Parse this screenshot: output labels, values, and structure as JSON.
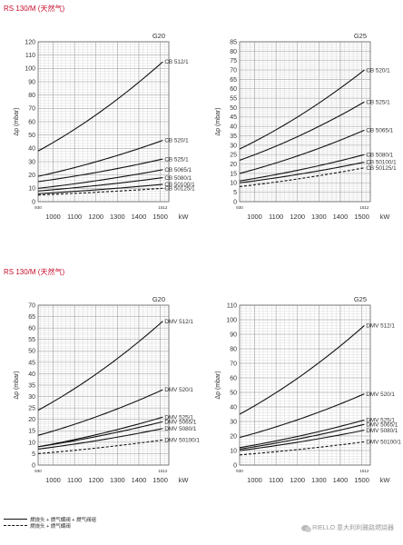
{
  "page": {
    "section1_title": "RS 130/M (天然气)",
    "section2_title": "RS 130/M (天然气)",
    "legend": {
      "solid_label": "燃烧头 + 燃气蝶阀 + 燃气阀组",
      "dashed_label": "燃烧头 + 燃气蝶阀"
    },
    "footer": "RIELLO 意大利利雅路燃烧器"
  },
  "chart_data": [
    {
      "type": "line",
      "gas": "G20",
      "ylabel": "Δp (mbar)",
      "xunit": "kW",
      "xlim": [
        930,
        1512
      ],
      "ylim": [
        0,
        120
      ],
      "yticks": [
        0,
        10,
        20,
        30,
        40,
        50,
        60,
        70,
        80,
        90,
        100,
        110,
        120
      ],
      "xticks": [
        1000,
        1100,
        1200,
        1300,
        1400,
        1500
      ],
      "xmarks": [
        "930",
        "1512"
      ],
      "series": [
        {
          "name": "CB 512/1",
          "dashed": false,
          "x": [
            930,
            1512
          ],
          "y": [
            38,
            105
          ]
        },
        {
          "name": "CB 520/1",
          "dashed": false,
          "x": [
            930,
            1512
          ],
          "y": [
            19,
            46
          ]
        },
        {
          "name": "CB 525/1",
          "dashed": false,
          "x": [
            930,
            1512
          ],
          "y": [
            15,
            32
          ]
        },
        {
          "name": "CB 5065/1",
          "dashed": false,
          "x": [
            930,
            1512
          ],
          "y": [
            10,
            24
          ]
        },
        {
          "name": "CB 5080/1",
          "dashed": false,
          "x": [
            930,
            1512
          ],
          "y": [
            8,
            18
          ]
        },
        {
          "name": "CB 50100/1",
          "dashed": false,
          "x": [
            930,
            1512
          ],
          "y": [
            6,
            13
          ]
        },
        {
          "name": "CB 50125/1",
          "dashed": true,
          "x": [
            930,
            1512
          ],
          "y": [
            5,
            10
          ]
        }
      ]
    },
    {
      "type": "line",
      "gas": "G25",
      "ylabel": "Δp (mbar)",
      "xunit": "kW",
      "xlim": [
        930,
        1512
      ],
      "ylim": [
        0,
        85
      ],
      "yticks": [
        0,
        5,
        10,
        15,
        20,
        25,
        30,
        35,
        40,
        45,
        50,
        55,
        60,
        65,
        70,
        75,
        80,
        85
      ],
      "xticks": [
        1000,
        1100,
        1200,
        1300,
        1400,
        1500
      ],
      "xmarks": [
        "930",
        "1512"
      ],
      "series": [
        {
          "name": "CB 520/1",
          "dashed": false,
          "x": [
            930,
            1512
          ],
          "y": [
            28,
            70
          ]
        },
        {
          "name": "CB 525/1",
          "dashed": false,
          "x": [
            930,
            1512
          ],
          "y": [
            22,
            53
          ]
        },
        {
          "name": "CB 5065/1",
          "dashed": false,
          "x": [
            930,
            1512
          ],
          "y": [
            15,
            38
          ]
        },
        {
          "name": "CB 5080/1",
          "dashed": false,
          "x": [
            930,
            1512
          ],
          "y": [
            11,
            25
          ]
        },
        {
          "name": "CB 50100/1",
          "dashed": false,
          "x": [
            930,
            1512
          ],
          "y": [
            10,
            21
          ]
        },
        {
          "name": "CB 50125/1",
          "dashed": true,
          "x": [
            930,
            1512
          ],
          "y": [
            8,
            18
          ]
        }
      ]
    },
    {
      "type": "line",
      "gas": "G20",
      "ylabel": "Δp (mbar)",
      "xunit": "kW",
      "xlim": [
        930,
        1512
      ],
      "ylim": [
        0,
        70
      ],
      "yticks": [
        0,
        5,
        10,
        15,
        20,
        25,
        30,
        35,
        40,
        45,
        50,
        55,
        60,
        65,
        70
      ],
      "xticks": [
        1000,
        1100,
        1200,
        1300,
        1400,
        1500
      ],
      "xmarks": [
        "930",
        "1512"
      ],
      "series": [
        {
          "name": "DMV 512/1",
          "dashed": false,
          "x": [
            930,
            1512
          ],
          "y": [
            24,
            63
          ]
        },
        {
          "name": "DMV 520/1",
          "dashed": false,
          "x": [
            930,
            1512
          ],
          "y": [
            13,
            33
          ]
        },
        {
          "name": "DMV 525/1",
          "dashed": false,
          "x": [
            930,
            1512
          ],
          "y": [
            8,
            21
          ]
        },
        {
          "name": "DMV 5065/1",
          "dashed": false,
          "x": [
            930,
            1512
          ],
          "y": [
            8,
            19
          ]
        },
        {
          "name": "DMV 5080/1",
          "dashed": false,
          "x": [
            930,
            1512
          ],
          "y": [
            7,
            16
          ]
        },
        {
          "name": "DMV 50100/1",
          "dashed": true,
          "x": [
            930,
            1512
          ],
          "y": [
            5,
            11
          ]
        }
      ]
    },
    {
      "type": "line",
      "gas": "G25",
      "ylabel": "Δp (mbar)",
      "xunit": "kW",
      "xlim": [
        930,
        1512
      ],
      "ylim": [
        0,
        110
      ],
      "yticks": [
        0,
        10,
        20,
        30,
        40,
        50,
        60,
        70,
        80,
        90,
        100,
        110
      ],
      "xticks": [
        1000,
        1100,
        1200,
        1300,
        1400,
        1500
      ],
      "xmarks": [
        "930",
        "1512"
      ],
      "series": [
        {
          "name": "DMV 512/1",
          "dashed": false,
          "x": [
            930,
            1512
          ],
          "y": [
            35,
            96
          ]
        },
        {
          "name": "DMV 520/1",
          "dashed": false,
          "x": [
            930,
            1512
          ],
          "y": [
            19,
            49
          ]
        },
        {
          "name": "DMV 525/1",
          "dashed": false,
          "x": [
            930,
            1512
          ],
          "y": [
            12,
            31
          ]
        },
        {
          "name": "DMV 5065/1",
          "dashed": false,
          "x": [
            930,
            1512
          ],
          "y": [
            11,
            28
          ]
        },
        {
          "name": "DMV 5080/1",
          "dashed": false,
          "x": [
            930,
            1512
          ],
          "y": [
            10,
            24
          ]
        },
        {
          "name": "DMV 50100/1",
          "dashed": true,
          "x": [
            930,
            1512
          ],
          "y": [
            7,
            16
          ]
        }
      ]
    }
  ]
}
